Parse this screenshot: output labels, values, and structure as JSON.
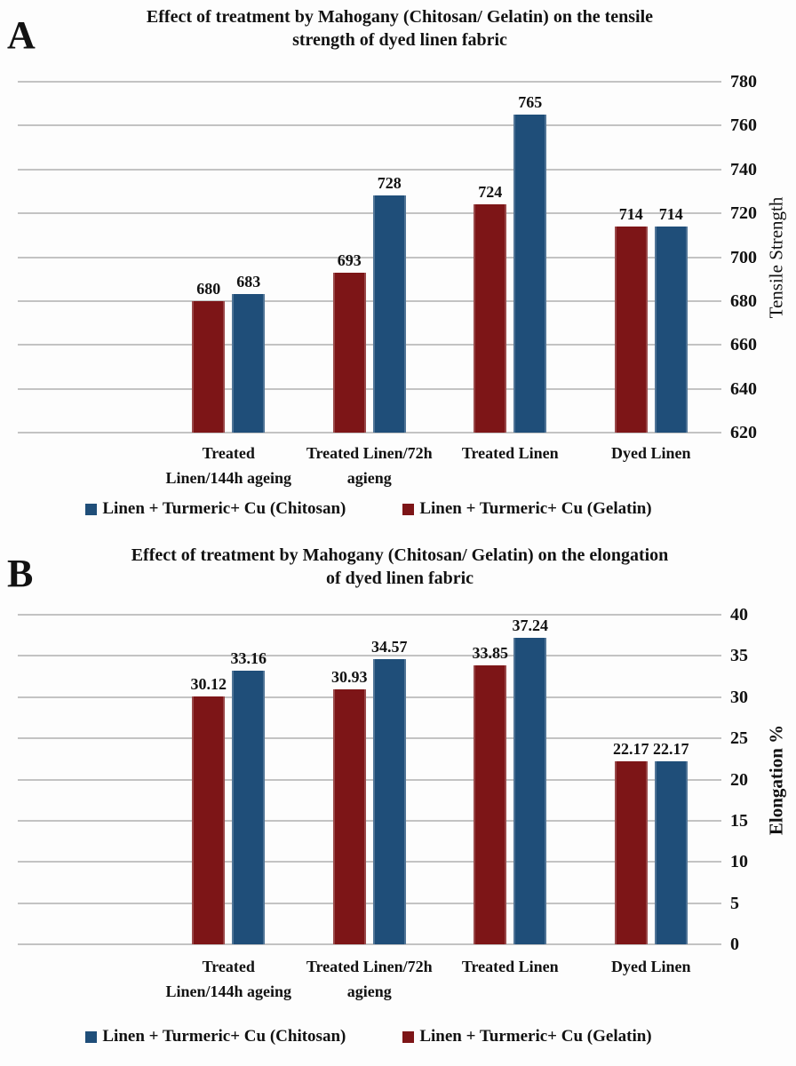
{
  "page": {
    "background": "#fdfdfd"
  },
  "colors": {
    "chitosan_blue": "#1F4E79",
    "gelatin_red": "#7D1517",
    "gridline": "#C3C3C3",
    "text": "#121212"
  },
  "figures": [
    {
      "panel_label": "A",
      "title_lines": [
        "Effect of treatment by Mahogany (Chitosan/ Gelatin) on the tensile",
        "strength of dyed linen fabric"
      ]
    },
    {
      "panel_label": "B",
      "title_lines": [
        "Effect of treatment by Mahogany (Chitosan/ Gelatin) on the elongation",
        "of dyed linen fabric"
      ]
    }
  ],
  "chart_data": [
    {
      "type": "bar",
      "panel": "A",
      "title": "Effect of treatment by Mahogany (Chitosan/ Gelatin) on the tensile strength of dyed linen fabric",
      "categories": [
        "Treated Linen/144h ageing",
        "Treated Linen/72h agieng",
        "Treated Linen",
        "Dyed Linen"
      ],
      "category_lines": [
        [
          "Treated",
          "Linen/144h ageing"
        ],
        [
          "Treated Linen/72h",
          "agieng"
        ],
        [
          "Treated Linen"
        ],
        [
          "Dyed Linen"
        ]
      ],
      "series": [
        {
          "name": "Linen + Turmeric+ Cu (Gelatin)",
          "color_key": "gelatin_red",
          "values": [
            680,
            693,
            724,
            714
          ],
          "labels": [
            "680",
            "693",
            "724",
            "714"
          ]
        },
        {
          "name": "Linen + Turmeric+ Cu (Chitosan)",
          "color_key": "chitosan_blue",
          "values": [
            683,
            728,
            765,
            714
          ],
          "labels": [
            "683",
            "728",
            "765",
            "714"
          ]
        }
      ],
      "xlabel": "",
      "ylabel": "Tensile Strength",
      "ylim": [
        620,
        780
      ],
      "ytick_step": 20,
      "yticks": [
        780,
        760,
        740,
        720,
        700,
        680,
        660,
        640,
        620
      ],
      "axis_side": "right",
      "grid": true,
      "legend_position": "bottom",
      "legend": [
        {
          "label": "Linen + Turmeric+ Cu (Chitosan)",
          "color_key": "chitosan_blue"
        },
        {
          "label": "Linen + Turmeric+ Cu (Gelatin)",
          "color_key": "gelatin_red"
        }
      ]
    },
    {
      "type": "bar",
      "panel": "B",
      "title": "Effect of treatment by Mahogany (Chitosan/ Gelatin) on the elongation of dyed linen fabric",
      "categories": [
        "Treated Linen/144h ageing",
        "Treated Linen/72h agieng",
        "Treated Linen",
        "Dyed Linen"
      ],
      "category_lines": [
        [
          "Treated",
          "Linen/144h ageing"
        ],
        [
          "Treated Linen/72h",
          "agieng"
        ],
        [
          "Treated Linen"
        ],
        [
          "Dyed Linen"
        ]
      ],
      "series": [
        {
          "name": "Linen + Turmeric+ Cu (Gelatin)",
          "color_key": "gelatin_red",
          "values": [
            30.12,
            30.93,
            33.85,
            22.17
          ],
          "labels": [
            "30.12",
            "30.93",
            "33.85",
            "22.17"
          ]
        },
        {
          "name": "Linen + Turmeric+ Cu (Chitosan)",
          "color_key": "chitosan_blue",
          "values": [
            33.16,
            34.57,
            37.24,
            22.17
          ],
          "labels": [
            "33.16",
            "34.57",
            "37.24",
            "22.17"
          ]
        }
      ],
      "xlabel": "",
      "ylabel": "Elongation %",
      "ylim": [
        0,
        40
      ],
      "ytick_step": 5,
      "yticks": [
        40,
        35,
        30,
        25,
        20,
        15,
        10,
        5,
        0
      ],
      "axis_side": "right",
      "grid": true,
      "legend_position": "bottom",
      "legend": [
        {
          "label": "Linen + Turmeric+ Cu (Chitosan)",
          "color_key": "chitosan_blue"
        },
        {
          "label": "Linen + Turmeric+ Cu (Gelatin)",
          "color_key": "gelatin_red"
        }
      ]
    }
  ]
}
